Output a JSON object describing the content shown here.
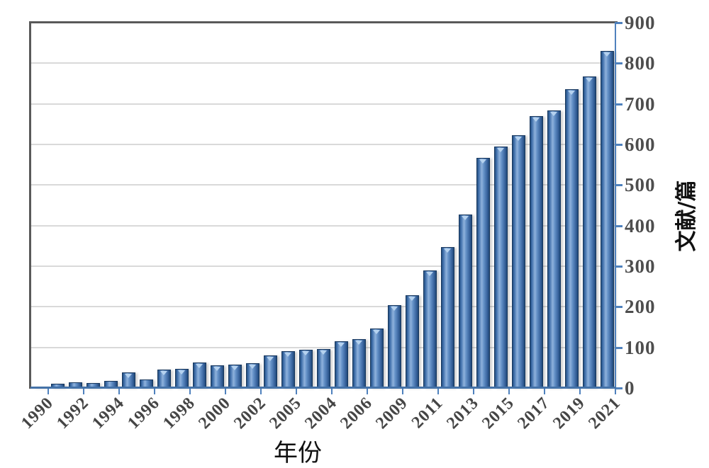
{
  "chart_data": {
    "type": "bar",
    "title": "",
    "xlabel": "年份",
    "ylabel": "文献/篇",
    "ylim": [
      0,
      900
    ],
    "grid": "horizontal, every 100, light gray, behind bars",
    "legend": "none",
    "y_tick_labels": [
      "0",
      "100",
      "200",
      "300",
      "400",
      "500",
      "600",
      "700",
      "800",
      "900"
    ],
    "x_tick_labels": [
      "1990",
      "1992",
      "1994",
      "1996",
      "1998",
      "2000",
      "2002",
      "2005",
      "2004",
      "2006",
      "2009",
      "2011",
      "2013",
      "2015",
      "2017",
      "2019",
      "2021"
    ],
    "x_label_note": "labels shown under every other bar (odd categories); hidden in-between categories exist",
    "bars": [
      {
        "label": "1990",
        "value": 2
      },
      {
        "label": "",
        "value": 8
      },
      {
        "label": "1992",
        "value": 12
      },
      {
        "label": "",
        "value": 10
      },
      {
        "label": "1994",
        "value": 15
      },
      {
        "label": "",
        "value": 36
      },
      {
        "label": "1996",
        "value": 20
      },
      {
        "label": "",
        "value": 43
      },
      {
        "label": "1998",
        "value": 45
      },
      {
        "label": "",
        "value": 61
      },
      {
        "label": "2000",
        "value": 54
      },
      {
        "label": "",
        "value": 56
      },
      {
        "label": "2002",
        "value": 60
      },
      {
        "label": "",
        "value": 78
      },
      {
        "label": "2005",
        "value": 89
      },
      {
        "label": "",
        "value": 92
      },
      {
        "label": "2004",
        "value": 95
      },
      {
        "label": "",
        "value": 113
      },
      {
        "label": "2006",
        "value": 119
      },
      {
        "label": "",
        "value": 145
      },
      {
        "label": "2009",
        "value": 202
      },
      {
        "label": "",
        "value": 227
      },
      {
        "label": "2011",
        "value": 288
      },
      {
        "label": "",
        "value": 345
      },
      {
        "label": "2013",
        "value": 425
      },
      {
        "label": "",
        "value": 565
      },
      {
        "label": "2015",
        "value": 593
      },
      {
        "label": "",
        "value": 621
      },
      {
        "label": "2017",
        "value": 668
      },
      {
        "label": "",
        "value": 682
      },
      {
        "label": "2019",
        "value": 735
      },
      {
        "label": "",
        "value": 765
      },
      {
        "label": "2021",
        "value": 828
      }
    ],
    "colors": {
      "bar_fill_mid": "#6592c8",
      "bar_fill_light": "#8fb2dc",
      "bar_fill_dark": "#26507f",
      "bar_outline": "#17375e",
      "bar_bevel_triangle": "#b5d2ef",
      "axis_blue": "#4f81bd",
      "plot_border_gray": "#595959",
      "gridline": "#d9d9d9",
      "tick_label_gray": "#4d4d4d",
      "axis_title_black": "#111111"
    }
  }
}
